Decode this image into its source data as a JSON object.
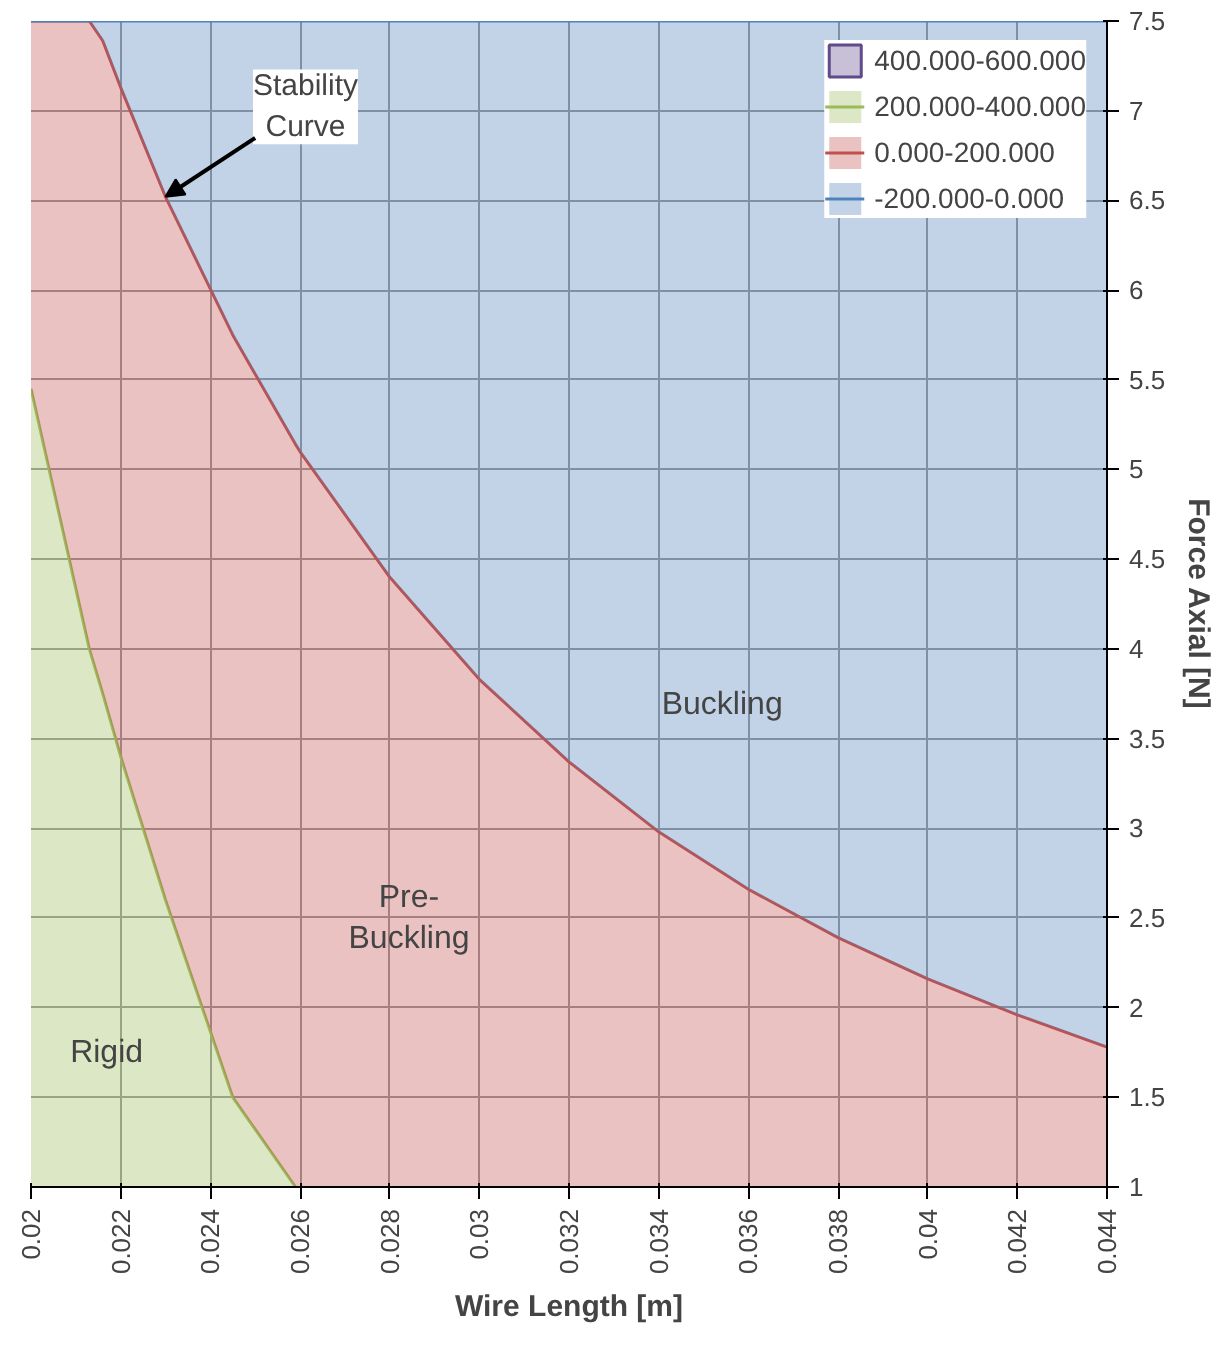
{
  "chart_data": {
    "type": "area",
    "xlabel": "Wire Length [m]",
    "ylabel": "Force Axial [N]",
    "x": [
      0.02,
      0.0213,
      0.0216,
      0.022,
      0.023,
      0.0245,
      0.0259,
      0.026,
      0.028,
      0.03,
      0.032,
      0.034,
      0.036,
      0.038,
      0.04,
      0.042,
      0.044
    ],
    "series": [
      {
        "name": "400.000-600.000",
        "color": "#5f4b8b",
        "values": [
          null,
          null,
          null,
          null,
          null,
          null,
          null,
          null,
          null,
          null,
          null,
          null,
          null,
          null,
          null,
          null,
          null
        ]
      },
      {
        "name": "200.000-400.000",
        "color": "#9bbb59",
        "values": [
          5.45,
          4.0,
          3.75,
          3.4,
          2.6,
          1.5,
          1.0,
          null,
          null,
          null,
          null,
          null,
          null,
          null,
          null,
          null,
          null
        ]
      },
      {
        "name": "0.000-200.000",
        "color": "#c0504d",
        "values": [
          7.5,
          7.5,
          7.39,
          7.13,
          6.52,
          5.75,
          5.14,
          5.1,
          4.4,
          3.83,
          3.37,
          2.98,
          2.66,
          2.39,
          2.16,
          1.96,
          1.78
        ]
      },
      {
        "name": "-200.000-0.000",
        "color": "#4f81bd",
        "values": [
          7.5,
          7.5,
          7.5,
          7.5,
          7.5,
          7.5,
          7.5,
          7.5,
          7.5,
          7.5,
          7.5,
          7.5,
          7.5,
          7.5,
          7.5,
          7.5,
          7.5
        ]
      }
    ],
    "xlim": [
      0.02,
      0.044
    ],
    "xticks": [
      0.02,
      0.022,
      0.024,
      0.026,
      0.028,
      0.03,
      0.032,
      0.034,
      0.036,
      0.038,
      0.04,
      0.042,
      0.044
    ],
    "ylim": [
      1,
      7.5
    ],
    "yticks": [
      1,
      1.5,
      2,
      2.5,
      3,
      3.5,
      4,
      4.5,
      5,
      5.5,
      6,
      6.5,
      7,
      7.5
    ],
    "annotations": [
      {
        "text": "Stability\nCurve",
        "x": 0.023,
        "y": 6.52
      },
      "Buckling",
      "Pre-\nBuckling",
      "Rigid"
    ],
    "grid": true,
    "legend": "top right"
  }
}
